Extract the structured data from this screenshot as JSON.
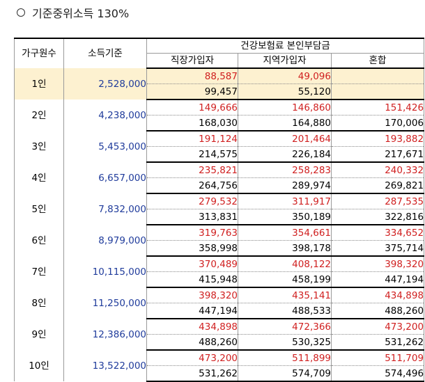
{
  "title": "기준중위소득 130%",
  "headers": {
    "household": "가구원수",
    "income": "소득기준",
    "premium_group": "건강보험료 본인부담금",
    "employee": "직장가입자",
    "regional": "지역가입자",
    "mixed": "혼합"
  },
  "rows": [
    {
      "household": "1인",
      "income": "2,528,000",
      "top": [
        "88,587",
        "49,096",
        ""
      ],
      "bottom": [
        "99,457",
        "55,120",
        ""
      ]
    },
    {
      "household": "2인",
      "income": "4,238,000",
      "top": [
        "149,666",
        "146,860",
        "151,426"
      ],
      "bottom": [
        "168,030",
        "164,880",
        "170,006"
      ]
    },
    {
      "household": "3인",
      "income": "5,453,000",
      "top": [
        "191,124",
        "201,464",
        "193,882"
      ],
      "bottom": [
        "214,575",
        "226,184",
        "217,671"
      ]
    },
    {
      "household": "4인",
      "income": "6,657,000",
      "top": [
        "235,821",
        "258,283",
        "240,332"
      ],
      "bottom": [
        "264,756",
        "289,974",
        "269,821"
      ]
    },
    {
      "household": "5인",
      "income": "7,832,000",
      "top": [
        "279,532",
        "311,917",
        "287,535"
      ],
      "bottom": [
        "313,831",
        "350,189",
        "322,816"
      ]
    },
    {
      "household": "6인",
      "income": "8,979,000",
      "top": [
        "319,763",
        "354,661",
        "334,652"
      ],
      "bottom": [
        "358,998",
        "398,178",
        "375,714"
      ]
    },
    {
      "household": "7인",
      "income": "10,115,000",
      "top": [
        "370,489",
        "408,122",
        "398,320"
      ],
      "bottom": [
        "415,948",
        "458,199",
        "447,194"
      ]
    },
    {
      "household": "8인",
      "income": "11,250,000",
      "top": [
        "398,320",
        "435,141",
        "434,898"
      ],
      "bottom": [
        "447,194",
        "488,533",
        "488,260"
      ]
    },
    {
      "household": "9인",
      "income": "12,386,000",
      "top": [
        "434,898",
        "472,366",
        "473,200"
      ],
      "bottom": [
        "488,260",
        "530,325",
        "531,262"
      ]
    },
    {
      "household": "10인",
      "income": "13,522,000",
      "top": [
        "473,200",
        "511,899",
        "511,709"
      ],
      "bottom": [
        "531,262",
        "574,709",
        "574,496"
      ]
    }
  ]
}
